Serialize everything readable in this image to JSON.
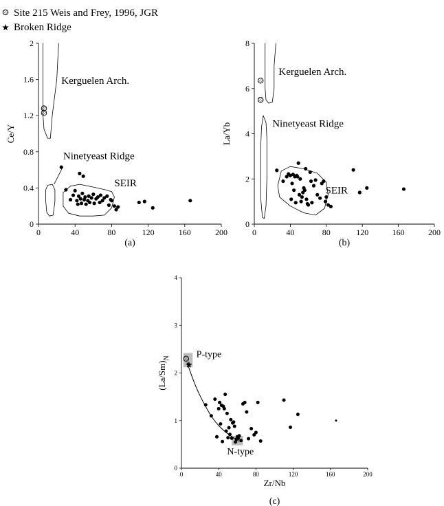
{
  "legend": [
    {
      "marker": "hatched-circle",
      "label": "Site 215 Weis and Frey, 1996, JGR"
    },
    {
      "marker": "star",
      "label": "Broken Ridge"
    }
  ],
  "chart_data": [
    {
      "type": "scatter",
      "panel": "a",
      "caption": "(a)",
      "xlabel": "",
      "ylabel": "Ce/Y",
      "xlim": [
        0,
        200
      ],
      "ylim": [
        0,
        2
      ],
      "x_ticks": [
        0,
        40,
        80,
        120,
        160,
        200
      ],
      "y_ticks": [
        0,
        0.4,
        0.8,
        1.2,
        1.6,
        2
      ],
      "x_tick_labels": [
        "0",
        "40",
        "80",
        "120",
        "160",
        "200"
      ],
      "y_tick_labels": [
        "0",
        "0.4",
        "0.8",
        "1.2",
        "1.6",
        "2"
      ],
      "field_labels": [
        {
          "text": "Kerguelen Arch.",
          "x": 25,
          "y": 1.55
        },
        {
          "text": "Ninetyeast Ridge",
          "x": 27,
          "y": 0.72
        },
        {
          "text": "SEIR",
          "x": 83,
          "y": 0.42
        }
      ],
      "fields": [
        {
          "name": "Kerguelen Arch.",
          "outline": [
            [
              5,
              2
            ],
            [
              5,
              1.2
            ],
            [
              6,
              1.05
            ],
            [
              10,
              0.95
            ],
            [
              13,
              0.95
            ],
            [
              15,
              1.2
            ],
            [
              20,
              1.6
            ],
            [
              22,
              2
            ]
          ]
        },
        {
          "name": "Ninetyeast Ridge",
          "outline": [
            [
              8,
              0.38
            ],
            [
              10,
              0.43
            ],
            [
              15,
              0.44
            ],
            [
              18,
              0.38
            ],
            [
              18,
              0.25
            ],
            [
              16,
              0.1
            ],
            [
              12,
              0.09
            ],
            [
              9,
              0.13
            ],
            [
              8,
              0.25
            ],
            [
              8,
              0.38
            ]
          ]
        },
        {
          "name": "SEIR",
          "outline": [
            [
              27,
              0.35
            ],
            [
              35,
              0.42
            ],
            [
              45,
              0.44
            ],
            [
              60,
              0.41
            ],
            [
              73,
              0.38
            ],
            [
              80,
              0.36
            ],
            [
              83,
              0.3
            ],
            [
              80,
              0.18
            ],
            [
              72,
              0.1
            ],
            [
              60,
              0.09
            ],
            [
              45,
              0.09
            ],
            [
              33,
              0.12
            ],
            [
              27,
              0.2
            ],
            [
              27,
              0.35
            ]
          ]
        }
      ],
      "leader_line": [
        [
          17,
          0.44
        ],
        [
          26,
          0.62
        ]
      ],
      "series": [
        {
          "name": "Site 215 Weis and Frey, 1996, JGR",
          "marker": "hatched-circle",
          "points": [
            [
              6,
              1.28
            ],
            [
              6,
              1.23
            ]
          ]
        },
        {
          "name": "",
          "marker": "dot",
          "points": [
            [
              25,
              0.63
            ],
            [
              30,
              0.38
            ],
            [
              35,
              0.27
            ],
            [
              38,
              0.32
            ],
            [
              40,
              0.37
            ],
            [
              42,
              0.26
            ],
            [
              43,
              0.22
            ],
            [
              44,
              0.31
            ],
            [
              45,
              0.56
            ],
            [
              46,
              0.28
            ],
            [
              47,
              0.23
            ],
            [
              48,
              0.34
            ],
            [
              49,
              0.53
            ],
            [
              50,
              0.27
            ],
            [
              51,
              0.3
            ],
            [
              52,
              0.22
            ],
            [
              54,
              0.26
            ],
            [
              55,
              0.31
            ],
            [
              56,
              0.24
            ],
            [
              58,
              0.29
            ],
            [
              60,
              0.33
            ],
            [
              61,
              0.23
            ],
            [
              63,
              0.28
            ],
            [
              65,
              0.3
            ],
            [
              67,
              0.24
            ],
            [
              68,
              0.32
            ],
            [
              70,
              0.26
            ],
            [
              72,
              0.29
            ],
            [
              75,
              0.31
            ],
            [
              77,
              0.21
            ],
            [
              79,
              0.27
            ],
            [
              80,
              0.26
            ],
            [
              83,
              0.2
            ],
            [
              85,
              0.16
            ],
            [
              87,
              0.19
            ],
            [
              110,
              0.24
            ],
            [
              116,
              0.25
            ],
            [
              125,
              0.18
            ],
            [
              166,
              0.26
            ]
          ]
        }
      ]
    },
    {
      "type": "scatter",
      "panel": "b",
      "caption": "(b)",
      "xlabel": "",
      "ylabel": "La/Yb",
      "xlim": [
        0,
        200
      ],
      "ylim": [
        0,
        8
      ],
      "x_ticks": [
        0,
        40,
        80,
        120,
        160,
        200
      ],
      "y_ticks": [
        0,
        2,
        4,
        6,
        8
      ],
      "x_tick_labels": [
        "0",
        "40",
        "80",
        "120",
        "160",
        "200"
      ],
      "y_tick_labels": [
        "0",
        "2",
        "4",
        "6",
        "8"
      ],
      "field_labels": [
        {
          "text": "Kerguelen Arch.",
          "x": 27,
          "y": 6.6
        },
        {
          "text": "Ninetyeast Ridge",
          "x": 20,
          "y": 4.3
        },
        {
          "text": "SEIR",
          "x": 79,
          "y": 1.35
        }
      ],
      "fields": [
        {
          "name": "Kerguelen Arch.",
          "outline": [
            [
              12,
              8
            ],
            [
              12,
              6
            ],
            [
              13,
              5.5
            ],
            [
              16,
              5.35
            ],
            [
              20,
              5.4
            ],
            [
              22,
              6
            ],
            [
              22,
              7
            ],
            [
              24,
              8
            ]
          ]
        },
        {
          "name": "Ninetyeast Ridge",
          "outline": [
            [
              7,
              3.3
            ],
            [
              8,
              4.3
            ],
            [
              10,
              4.8
            ],
            [
              13,
              4.5
            ],
            [
              14,
              3.8
            ],
            [
              14,
              2
            ],
            [
              13,
              0.8
            ],
            [
              11,
              0.25
            ],
            [
              9,
              0.3
            ],
            [
              7,
              1.2
            ],
            [
              7,
              3.3
            ]
          ]
        },
        {
          "name": "SEIR",
          "outline": [
            [
              26,
              1.7
            ],
            [
              30,
              2.35
            ],
            [
              40,
              2.55
            ],
            [
              55,
              2.45
            ],
            [
              70,
              2.25
            ],
            [
              80,
              1.85
            ],
            [
              82,
              1.3
            ],
            [
              78,
              0.7
            ],
            [
              68,
              0.4
            ],
            [
              55,
              0.5
            ],
            [
              40,
              0.8
            ],
            [
              28,
              1.2
            ],
            [
              26,
              1.7
            ]
          ]
        }
      ],
      "series": [
        {
          "name": "Site 215 Weis and Frey, 1996, JGR",
          "marker": "hatched-circle",
          "points": [
            [
              7,
              6.35
            ],
            [
              7,
              5.5
            ]
          ]
        },
        {
          "name": "",
          "marker": "dot",
          "points": [
            [
              25,
              2.38
            ],
            [
              32,
              1.9
            ],
            [
              36,
              2.1
            ],
            [
              38,
              2.22
            ],
            [
              40,
              2.15
            ],
            [
              41,
              1.1
            ],
            [
              42,
              1.8
            ],
            [
              43,
              2.2
            ],
            [
              44,
              1.5
            ],
            [
              45,
              2.1
            ],
            [
              46,
              0.95
            ],
            [
              47,
              2.15
            ],
            [
              48,
              2.1
            ],
            [
              49,
              2.7
            ],
            [
              50,
              1.3
            ],
            [
              51,
              2.0
            ],
            [
              52,
              1.0
            ],
            [
              53,
              1.2
            ],
            [
              54,
              1.4
            ],
            [
              55,
              1.6
            ],
            [
              56,
              1.5
            ],
            [
              57,
              2.45
            ],
            [
              58,
              1.1
            ],
            [
              59,
              0.9
            ],
            [
              60,
              0.85
            ],
            [
              62,
              2.3
            ],
            [
              63,
              1.9
            ],
            [
              64,
              0.95
            ],
            [
              66,
              1.7
            ],
            [
              68,
              1.95
            ],
            [
              70,
              1.3
            ],
            [
              73,
              1.15
            ],
            [
              75,
              1.8
            ],
            [
              77,
              1.9
            ],
            [
              79,
              1.0
            ],
            [
              80,
              1.2
            ],
            [
              82,
              0.85
            ],
            [
              85,
              0.78
            ],
            [
              110,
              2.4
            ],
            [
              117,
              1.4
            ],
            [
              125,
              1.6
            ],
            [
              166,
              1.55
            ]
          ]
        }
      ]
    },
    {
      "type": "scatter",
      "panel": "c",
      "caption": "(c)",
      "xlabel": "Zr/Nb",
      "ylabel": "(La/Sm)N",
      "ylabel_main": "(La/Sm)",
      "ylabel_sub": "N",
      "xlim": [
        0,
        200
      ],
      "ylim": [
        0,
        4
      ],
      "x_ticks": [
        0,
        40,
        80,
        120,
        160,
        200
      ],
      "y_ticks": [
        0,
        1,
        2,
        3,
        4
      ],
      "x_tick_labels": [
        "0",
        "40",
        "80",
        "120",
        "160",
        "200"
      ],
      "y_tick_labels": [
        "0",
        "1",
        "2",
        "3",
        "4"
      ],
      "field_labels": [
        {
          "text": "P-type",
          "x": 16,
          "y": 2.33
        },
        {
          "text": "N-type",
          "x": 49,
          "y": 0.29
        }
      ],
      "type_boxes": [
        {
          "name": "P-type",
          "x_range": [
            2,
            12
          ],
          "y_range": [
            2.12,
            2.42
          ]
        },
        {
          "name": "N-type",
          "x_range": [
            54,
            66
          ],
          "y_range": [
            0.48,
            0.68
          ]
        }
      ],
      "mixing_curve": [
        [
          6,
          2.22
        ],
        [
          15,
          1.72
        ],
        [
          25,
          1.32
        ],
        [
          35,
          1.0
        ],
        [
          45,
          0.79
        ],
        [
          55,
          0.65
        ],
        [
          62,
          0.56
        ]
      ],
      "series": [
        {
          "name": "Site 215 Weis and Frey, 1996, JGR",
          "marker": "hatched-circle",
          "points": [
            [
              5,
              2.3
            ]
          ]
        },
        {
          "name": "Broken Ridge",
          "marker": "star",
          "points": [
            [
              8,
              2.17
            ]
          ]
        },
        {
          "name": "",
          "marker": "dot",
          "points": [
            [
              26,
              1.33
            ],
            [
              32,
              1.1
            ],
            [
              36,
              1.45
            ],
            [
              38,
              0.66
            ],
            [
              40,
              1.25
            ],
            [
              41,
              1.38
            ],
            [
              42,
              0.93
            ],
            [
              43,
              1.32
            ],
            [
              44,
              0.56
            ],
            [
              45,
              1.3
            ],
            [
              46,
              1.25
            ],
            [
              47,
              1.55
            ],
            [
              48,
              0.78
            ],
            [
              49,
              1.15
            ],
            [
              50,
              0.64
            ],
            [
              51,
              0.85
            ],
            [
              52,
              0.71
            ],
            [
              53,
              1.02
            ],
            [
              54,
              0.63
            ],
            [
              55,
              0.95
            ],
            [
              56,
              0.97
            ],
            [
              57,
              0.88
            ],
            [
              58,
              0.55
            ],
            [
              59,
              0.61
            ],
            [
              60,
              0.66
            ],
            [
              61,
              0.63
            ],
            [
              62,
              0.68
            ],
            [
              64,
              0.58
            ],
            [
              66,
              1.35
            ],
            [
              68,
              1.38
            ],
            [
              70,
              1.18
            ],
            [
              72,
              0.62
            ],
            [
              75,
              0.83
            ],
            [
              78,
              0.7
            ],
            [
              80,
              0.75
            ],
            [
              82,
              1.38
            ],
            [
              85,
              0.57
            ],
            [
              110,
              1.43
            ],
            [
              117,
              0.86
            ],
            [
              125,
              1.13
            ]
          ]
        },
        {
          "name": "",
          "marker": "small-dot",
          "points": [
            [
              166,
              1.0
            ]
          ]
        }
      ]
    }
  ]
}
